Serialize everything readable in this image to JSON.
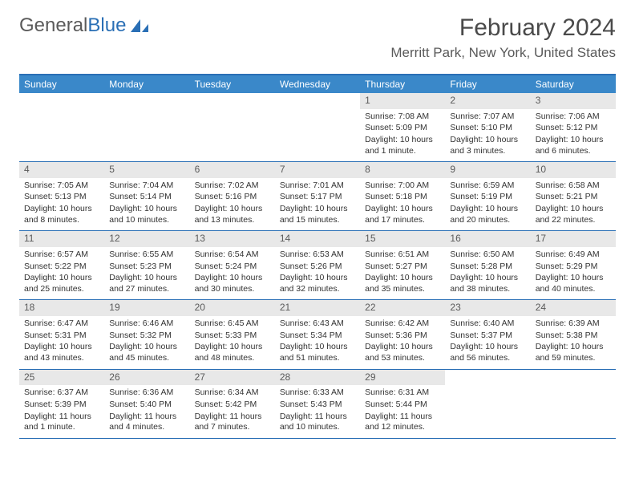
{
  "logo": {
    "text1": "General",
    "text2": "Blue"
  },
  "title": "February 2024",
  "location": "Merritt Park, New York, United States",
  "colors": {
    "header_bg": "#3a88c9",
    "border": "#2a6fb5",
    "daynum_bg": "#e8e8e8",
    "text": "#333333",
    "title_text": "#4a4a4a"
  },
  "day_names": [
    "Sunday",
    "Monday",
    "Tuesday",
    "Wednesday",
    "Thursday",
    "Friday",
    "Saturday"
  ],
  "weeks": [
    [
      null,
      null,
      null,
      null,
      {
        "n": "1",
        "rise": "Sunrise: 7:08 AM",
        "set": "Sunset: 5:09 PM",
        "dl": "Daylight: 10 hours and 1 minute."
      },
      {
        "n": "2",
        "rise": "Sunrise: 7:07 AM",
        "set": "Sunset: 5:10 PM",
        "dl": "Daylight: 10 hours and 3 minutes."
      },
      {
        "n": "3",
        "rise": "Sunrise: 7:06 AM",
        "set": "Sunset: 5:12 PM",
        "dl": "Daylight: 10 hours and 6 minutes."
      }
    ],
    [
      {
        "n": "4",
        "rise": "Sunrise: 7:05 AM",
        "set": "Sunset: 5:13 PM",
        "dl": "Daylight: 10 hours and 8 minutes."
      },
      {
        "n": "5",
        "rise": "Sunrise: 7:04 AM",
        "set": "Sunset: 5:14 PM",
        "dl": "Daylight: 10 hours and 10 minutes."
      },
      {
        "n": "6",
        "rise": "Sunrise: 7:02 AM",
        "set": "Sunset: 5:16 PM",
        "dl": "Daylight: 10 hours and 13 minutes."
      },
      {
        "n": "7",
        "rise": "Sunrise: 7:01 AM",
        "set": "Sunset: 5:17 PM",
        "dl": "Daylight: 10 hours and 15 minutes."
      },
      {
        "n": "8",
        "rise": "Sunrise: 7:00 AM",
        "set": "Sunset: 5:18 PM",
        "dl": "Daylight: 10 hours and 17 minutes."
      },
      {
        "n": "9",
        "rise": "Sunrise: 6:59 AM",
        "set": "Sunset: 5:19 PM",
        "dl": "Daylight: 10 hours and 20 minutes."
      },
      {
        "n": "10",
        "rise": "Sunrise: 6:58 AM",
        "set": "Sunset: 5:21 PM",
        "dl": "Daylight: 10 hours and 22 minutes."
      }
    ],
    [
      {
        "n": "11",
        "rise": "Sunrise: 6:57 AM",
        "set": "Sunset: 5:22 PM",
        "dl": "Daylight: 10 hours and 25 minutes."
      },
      {
        "n": "12",
        "rise": "Sunrise: 6:55 AM",
        "set": "Sunset: 5:23 PM",
        "dl": "Daylight: 10 hours and 27 minutes."
      },
      {
        "n": "13",
        "rise": "Sunrise: 6:54 AM",
        "set": "Sunset: 5:24 PM",
        "dl": "Daylight: 10 hours and 30 minutes."
      },
      {
        "n": "14",
        "rise": "Sunrise: 6:53 AM",
        "set": "Sunset: 5:26 PM",
        "dl": "Daylight: 10 hours and 32 minutes."
      },
      {
        "n": "15",
        "rise": "Sunrise: 6:51 AM",
        "set": "Sunset: 5:27 PM",
        "dl": "Daylight: 10 hours and 35 minutes."
      },
      {
        "n": "16",
        "rise": "Sunrise: 6:50 AM",
        "set": "Sunset: 5:28 PM",
        "dl": "Daylight: 10 hours and 38 minutes."
      },
      {
        "n": "17",
        "rise": "Sunrise: 6:49 AM",
        "set": "Sunset: 5:29 PM",
        "dl": "Daylight: 10 hours and 40 minutes."
      }
    ],
    [
      {
        "n": "18",
        "rise": "Sunrise: 6:47 AM",
        "set": "Sunset: 5:31 PM",
        "dl": "Daylight: 10 hours and 43 minutes."
      },
      {
        "n": "19",
        "rise": "Sunrise: 6:46 AM",
        "set": "Sunset: 5:32 PM",
        "dl": "Daylight: 10 hours and 45 minutes."
      },
      {
        "n": "20",
        "rise": "Sunrise: 6:45 AM",
        "set": "Sunset: 5:33 PM",
        "dl": "Daylight: 10 hours and 48 minutes."
      },
      {
        "n": "21",
        "rise": "Sunrise: 6:43 AM",
        "set": "Sunset: 5:34 PM",
        "dl": "Daylight: 10 hours and 51 minutes."
      },
      {
        "n": "22",
        "rise": "Sunrise: 6:42 AM",
        "set": "Sunset: 5:36 PM",
        "dl": "Daylight: 10 hours and 53 minutes."
      },
      {
        "n": "23",
        "rise": "Sunrise: 6:40 AM",
        "set": "Sunset: 5:37 PM",
        "dl": "Daylight: 10 hours and 56 minutes."
      },
      {
        "n": "24",
        "rise": "Sunrise: 6:39 AM",
        "set": "Sunset: 5:38 PM",
        "dl": "Daylight: 10 hours and 59 minutes."
      }
    ],
    [
      {
        "n": "25",
        "rise": "Sunrise: 6:37 AM",
        "set": "Sunset: 5:39 PM",
        "dl": "Daylight: 11 hours and 1 minute."
      },
      {
        "n": "26",
        "rise": "Sunrise: 6:36 AM",
        "set": "Sunset: 5:40 PM",
        "dl": "Daylight: 11 hours and 4 minutes."
      },
      {
        "n": "27",
        "rise": "Sunrise: 6:34 AM",
        "set": "Sunset: 5:42 PM",
        "dl": "Daylight: 11 hours and 7 minutes."
      },
      {
        "n": "28",
        "rise": "Sunrise: 6:33 AM",
        "set": "Sunset: 5:43 PM",
        "dl": "Daylight: 11 hours and 10 minutes."
      },
      {
        "n": "29",
        "rise": "Sunrise: 6:31 AM",
        "set": "Sunset: 5:44 PM",
        "dl": "Daylight: 11 hours and 12 minutes."
      },
      null,
      null
    ]
  ]
}
